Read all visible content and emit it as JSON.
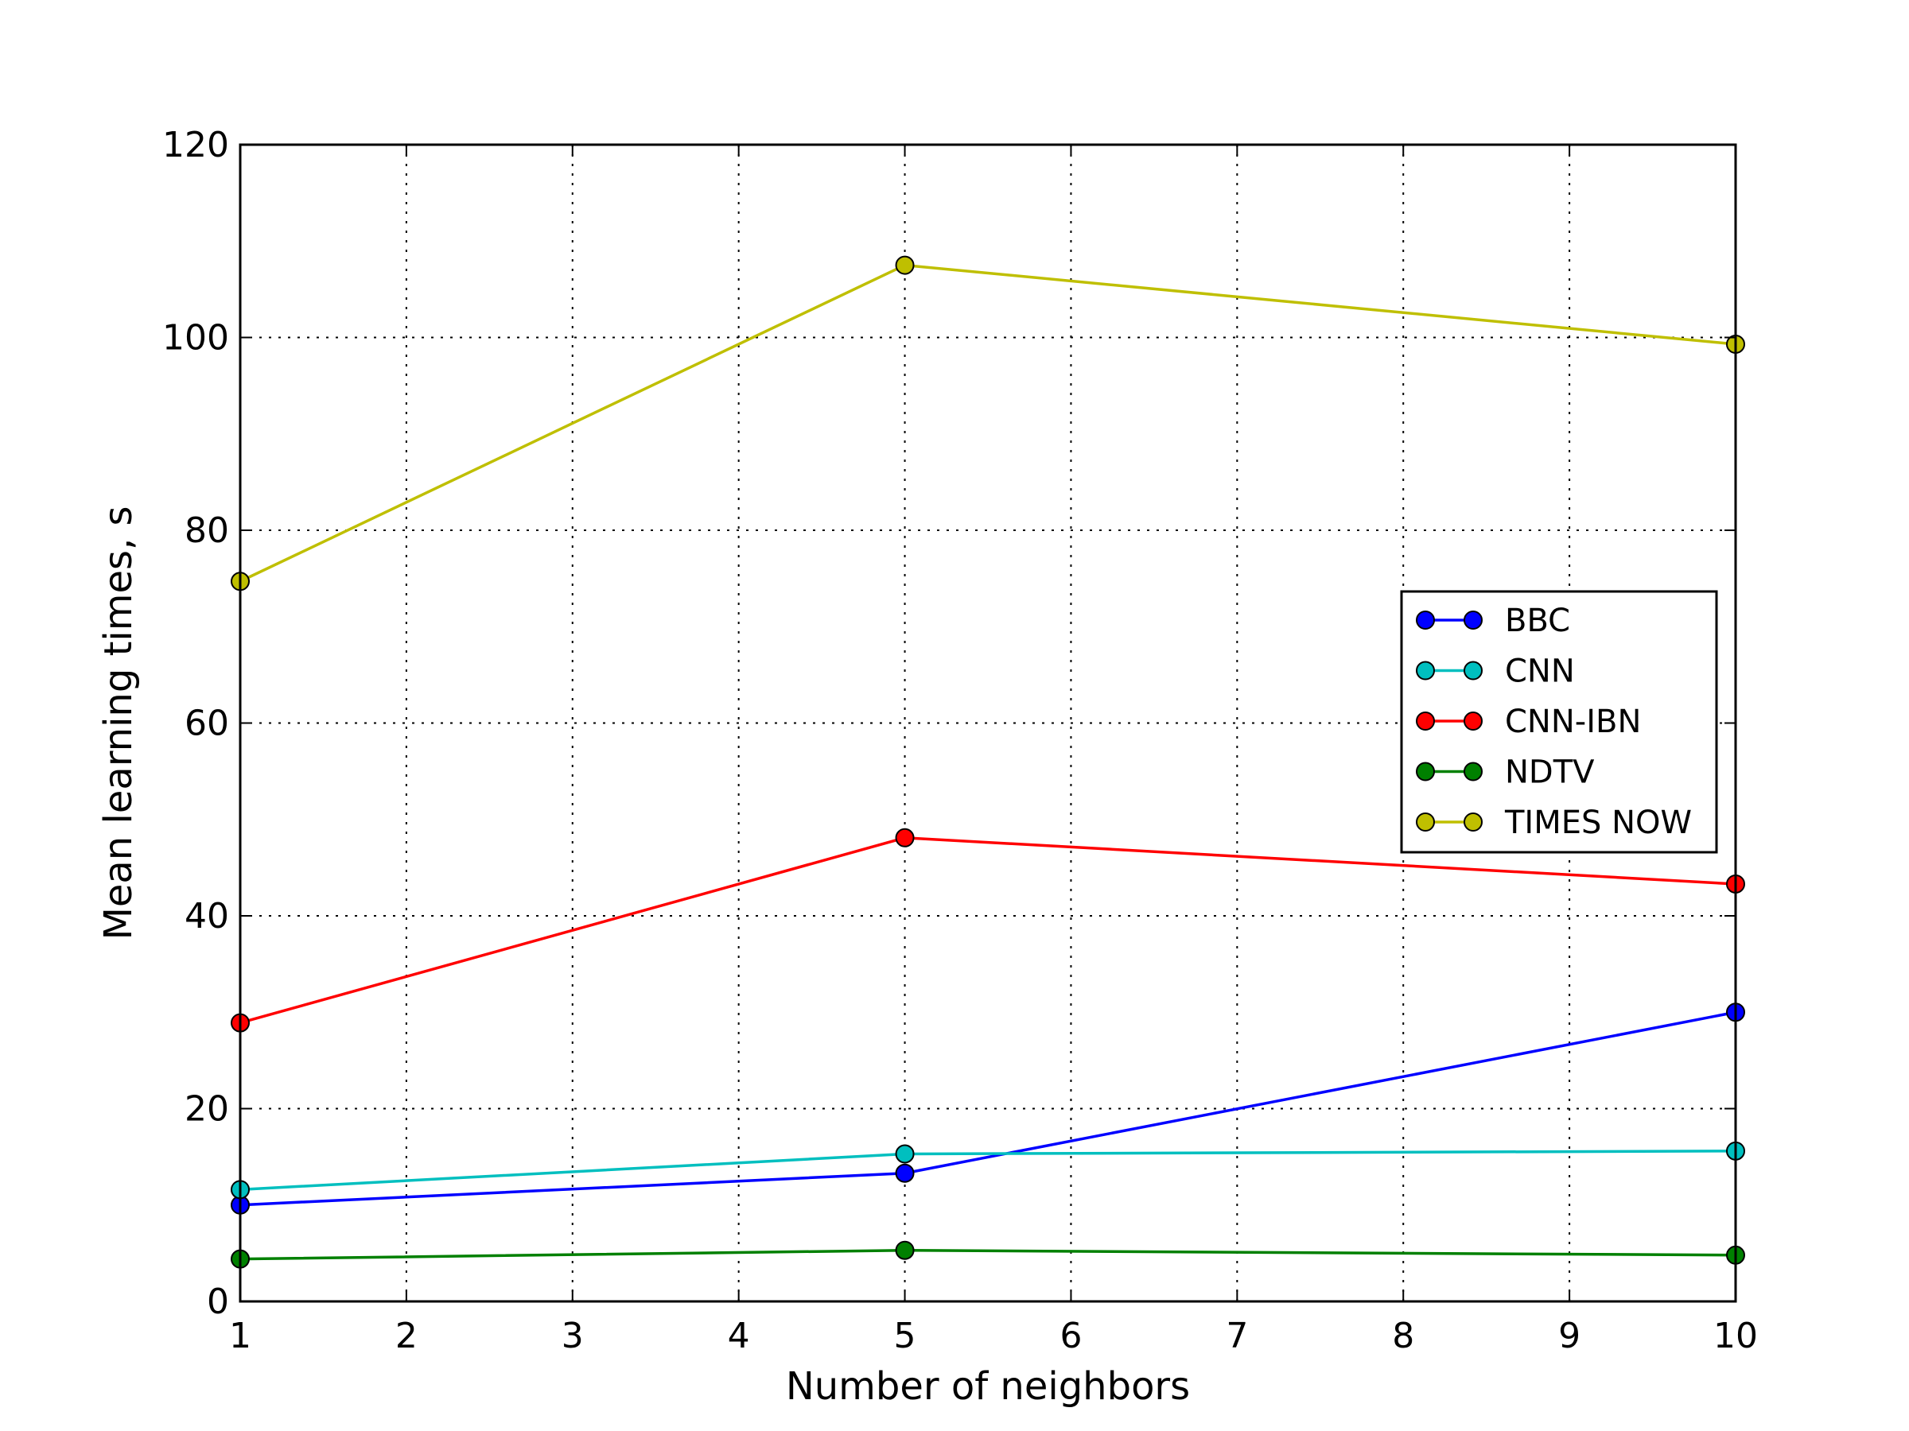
{
  "chart_data": {
    "type": "line",
    "title": "",
    "xlabel": "Number of neighbors",
    "ylabel": "Mean learning times, s",
    "xlim": [
      1,
      10
    ],
    "ylim": [
      0,
      120
    ],
    "xticks": [
      1,
      2,
      3,
      4,
      5,
      6,
      7,
      8,
      9,
      10
    ],
    "yticks": [
      0,
      20,
      40,
      60,
      80,
      100,
      120
    ],
    "x": [
      1,
      5,
      10
    ],
    "grid": true,
    "legend_position": "center-right",
    "series": [
      {
        "name": "BBC",
        "color": "#0000ff",
        "values": [
          10.0,
          13.3,
          30.0
        ]
      },
      {
        "name": "CNN",
        "color": "#00bfbf",
        "values": [
          11.6,
          15.3,
          15.6
        ]
      },
      {
        "name": "CNN-IBN",
        "color": "#ff0000",
        "values": [
          28.9,
          48.1,
          43.3
        ]
      },
      {
        "name": "NDTV",
        "color": "#008000",
        "values": [
          4.4,
          5.3,
          4.8
        ]
      },
      {
        "name": "TIMES NOW",
        "color": "#bfbf00",
        "values": [
          74.7,
          107.5,
          99.3
        ]
      }
    ]
  }
}
